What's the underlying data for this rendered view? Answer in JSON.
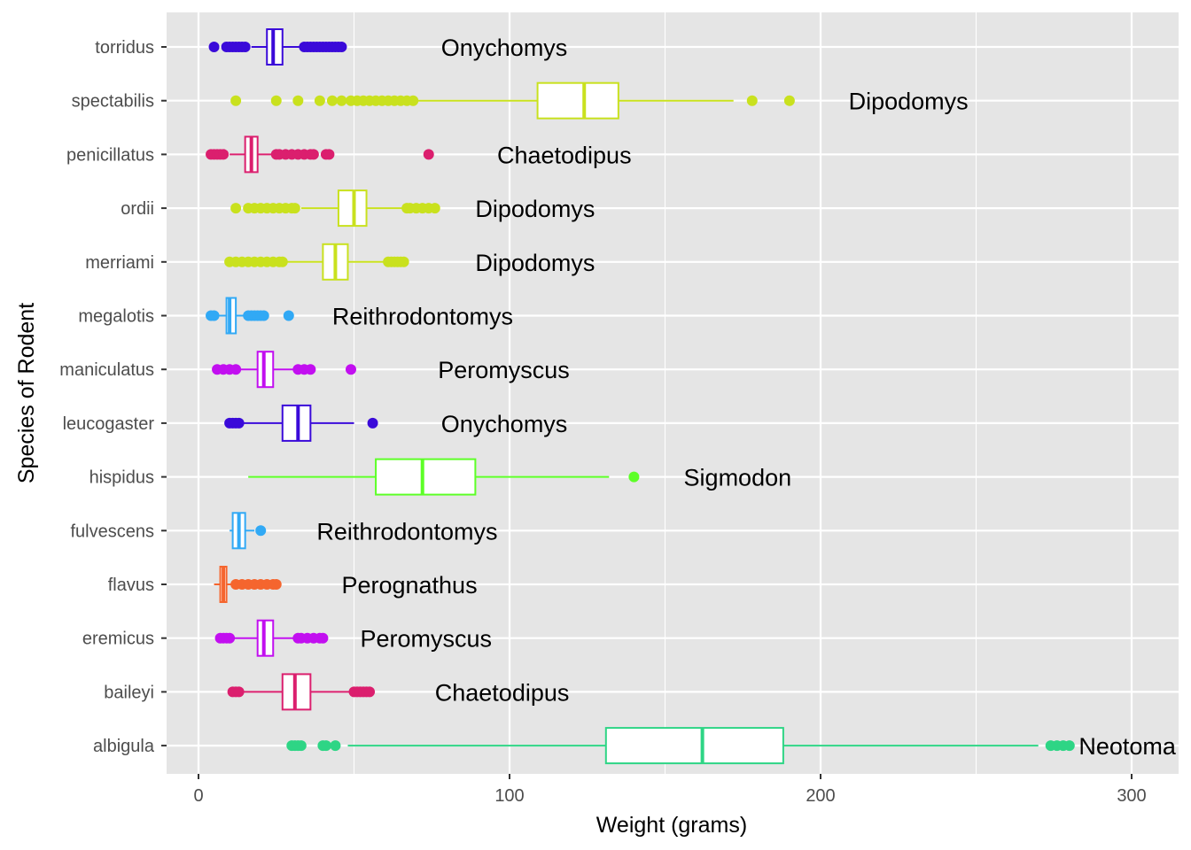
{
  "chart_data": {
    "type": "boxplot",
    "orientation": "horizontal",
    "xlabel": "Weight (grams)",
    "ylabel": "Species of Rodent",
    "xlim": [
      -10,
      313
    ],
    "xticks": [
      0,
      100,
      200,
      300
    ],
    "grid": true,
    "series": [
      {
        "species": "albigula",
        "genus": "Neotoma",
        "color": "#2ED585",
        "q1": 131,
        "median": 162,
        "q3": 188,
        "whisker_low": 48,
        "whisker_high": 270,
        "outliers": [
          30,
          31,
          32,
          33,
          40,
          41,
          44,
          274,
          276,
          278,
          280
        ],
        "label_x": 283
      },
      {
        "species": "baileyi",
        "genus": "Chaetodipus",
        "color": "#DB1F6E",
        "q1": 27,
        "median": 31,
        "q3": 36,
        "whisker_low": 12,
        "whisker_high": 49,
        "outliers": [
          11,
          12,
          13,
          50,
          51,
          52,
          53,
          54,
          55
        ],
        "label_x": 76
      },
      {
        "species": "eremicus",
        "genus": "Peromyscus",
        "color": "#C20FF0",
        "q1": 19,
        "median": 21,
        "q3": 24,
        "whisker_low": 10,
        "whisker_high": 31,
        "outliers": [
          7,
          8,
          9,
          10,
          32,
          33,
          35,
          37,
          39,
          40
        ],
        "label_x": 52
      },
      {
        "species": "flavus",
        "genus": "Perognathus",
        "color": "#F5652E",
        "q1": 7,
        "median": 8,
        "q3": 9,
        "whisker_low": 5,
        "whisker_high": 11,
        "outliers": [
          12,
          14,
          16,
          18,
          20,
          22,
          24,
          25
        ],
        "label_x": 46
      },
      {
        "species": "fulvescens",
        "genus": "Reithrodontomys",
        "color": "#31A9F5",
        "q1": 11,
        "median": 13,
        "q3": 15,
        "whisker_low": 10,
        "whisker_high": 18,
        "outliers": [
          20
        ],
        "label_x": 38
      },
      {
        "species": "hispidus",
        "genus": "Sigmodon",
        "color": "#5DFF27",
        "q1": 57,
        "median": 72,
        "q3": 89,
        "whisker_low": 16,
        "whisker_high": 132,
        "outliers": [
          140
        ],
        "label_x": 156
      },
      {
        "species": "leucogaster",
        "genus": "Onychomys",
        "color": "#3A0AD9",
        "q1": 27,
        "median": 32,
        "q3": 36,
        "whisker_low": 13,
        "whisker_high": 50,
        "outliers": [
          10,
          11,
          12,
          13,
          56
        ],
        "label_x": 78
      },
      {
        "species": "maniculatus",
        "genus": "Peromyscus",
        "color": "#C20FF0",
        "q1": 19,
        "median": 21,
        "q3": 24,
        "whisker_low": 11,
        "whisker_high": 31,
        "outliers": [
          6,
          8,
          10,
          12,
          32,
          34,
          36,
          49
        ],
        "label_x": 77
      },
      {
        "species": "megalotis",
        "genus": "Reithrodontomys",
        "color": "#31A9F5",
        "q1": 9,
        "median": 10,
        "q3": 12,
        "whisker_low": 6,
        "whisker_high": 16,
        "outliers": [
          4,
          5,
          16,
          17,
          18,
          19,
          20,
          21,
          29
        ],
        "label_x": 43
      },
      {
        "species": "merriami",
        "genus": "Dipodomys",
        "color": "#C9E11E",
        "q1": 40,
        "median": 44,
        "q3": 48,
        "whisker_low": 28,
        "whisker_high": 60,
        "outliers": [
          10,
          12,
          14,
          16,
          18,
          20,
          22,
          24,
          26,
          27,
          61,
          62,
          63,
          64,
          65,
          66
        ],
        "label_x": 89
      },
      {
        "species": "ordii",
        "genus": "Dipodomys",
        "color": "#C9E11E",
        "q1": 45,
        "median": 50,
        "q3": 54,
        "whisker_low": 33,
        "whisker_high": 66,
        "outliers": [
          12,
          16,
          18,
          20,
          22,
          24,
          26,
          28,
          30,
          31,
          67,
          68,
          70,
          72,
          74,
          76
        ],
        "label_x": 89
      },
      {
        "species": "penicillatus",
        "genus": "Chaetodipus",
        "color": "#DB1F6E",
        "q1": 15,
        "median": 17,
        "q3": 19,
        "whisker_low": 10,
        "whisker_high": 24,
        "outliers": [
          4,
          5,
          6,
          7,
          8,
          25,
          26,
          28,
          30,
          32,
          34,
          36,
          37,
          41,
          42,
          74
        ],
        "label_x": 96
      },
      {
        "species": "spectabilis",
        "genus": "Dipodomys",
        "color": "#C9E11E",
        "q1": 109,
        "median": 124,
        "q3": 135,
        "whisker_low": 70,
        "whisker_high": 172,
        "outliers": [
          12,
          25,
          32,
          39,
          43,
          46,
          49,
          51,
          53,
          55,
          57,
          59,
          61,
          63,
          65,
          67,
          69,
          178,
          190
        ],
        "label_x": 209
      },
      {
        "species": "torridus",
        "genus": "Onychomys",
        "color": "#3A0AD9",
        "q1": 22,
        "median": 24,
        "q3": 27,
        "whisker_low": 17,
        "whisker_high": 33,
        "outliers": [
          5,
          9,
          10,
          11,
          12,
          13,
          14,
          15,
          34,
          35,
          36,
          37,
          38,
          39,
          40,
          41,
          42,
          43,
          44,
          45,
          46
        ],
        "label_x": 78
      }
    ]
  }
}
